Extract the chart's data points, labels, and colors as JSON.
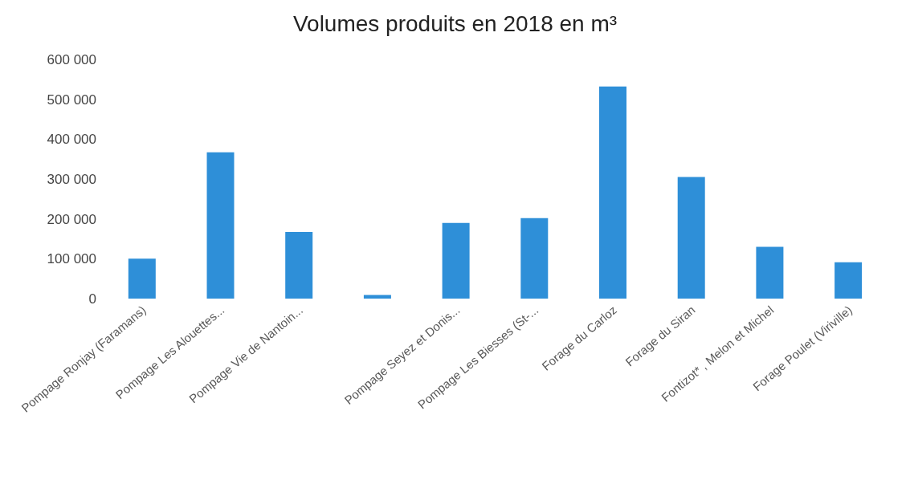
{
  "chart_data": {
    "type": "bar",
    "title": "Volumes produits en 2018 en m³",
    "categories": [
      "Pompage Ronjay (Faramans)",
      "Pompage Les Alouettes...",
      "Pompage Vie de Nantoin...",
      null,
      "Pompage Seyez et Donis...",
      "Pompage Les Biesses (St-...",
      "Forage du Carloz",
      "Forage du Siran",
      "Fontizot* , Melon et Michel",
      "Forage Poulet (Viriville)"
    ],
    "values": [
      100000,
      367000,
      167000,
      9000,
      190000,
      202000,
      532000,
      305000,
      130000,
      91000
    ],
    "color": "#2e8fd8",
    "ylim": [
      0,
      600000
    ],
    "yticks": [
      {
        "value": 0,
        "label": "0"
      },
      {
        "value": 100000,
        "label": "100 000"
      },
      {
        "value": 200000,
        "label": "200 000"
      },
      {
        "value": 300000,
        "label": "300 000"
      },
      {
        "value": 400000,
        "label": "400 000"
      },
      {
        "value": 500000,
        "label": "500 000"
      },
      {
        "value": 600000,
        "label": "600 000"
      }
    ],
    "grid": false,
    "legend": false
  }
}
